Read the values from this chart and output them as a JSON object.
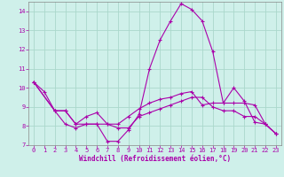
{
  "xlabel": "Windchill (Refroidissement éolien,°C)",
  "ylabel": "",
  "background_color": "#cff0ea",
  "grid_color": "#aad8cc",
  "line_color": "#aa00aa",
  "spine_color": "#888888",
  "xlim": [
    -0.5,
    23.5
  ],
  "ylim": [
    7,
    14.5
  ],
  "xticks": [
    0,
    1,
    2,
    3,
    4,
    5,
    6,
    7,
    8,
    9,
    10,
    11,
    12,
    13,
    14,
    15,
    16,
    17,
    18,
    19,
    20,
    21,
    22,
    23
  ],
  "yticks": [
    7,
    8,
    9,
    10,
    11,
    12,
    13,
    14
  ],
  "series1_x": [
    0,
    1,
    2,
    3,
    4,
    5,
    6,
    7,
    8,
    9,
    10,
    11,
    12,
    13,
    14,
    15,
    16,
    17,
    18,
    19,
    20,
    21,
    22,
    23
  ],
  "series1_y": [
    10.3,
    9.8,
    8.8,
    8.1,
    7.9,
    8.1,
    8.1,
    7.2,
    7.2,
    7.8,
    8.6,
    11.0,
    12.5,
    13.5,
    14.4,
    14.1,
    13.5,
    11.9,
    9.2,
    10.0,
    9.3,
    8.2,
    8.1,
    7.6
  ],
  "series2_x": [
    0,
    2,
    3,
    4,
    5,
    6,
    7,
    8,
    9,
    10,
    11,
    12,
    13,
    14,
    15,
    16,
    17,
    18,
    19,
    20,
    21,
    22,
    23
  ],
  "series2_y": [
    10.3,
    8.8,
    8.8,
    8.1,
    8.5,
    8.7,
    8.1,
    8.1,
    8.5,
    8.9,
    9.2,
    9.4,
    9.5,
    9.7,
    9.8,
    9.1,
    9.2,
    9.2,
    9.2,
    9.2,
    9.1,
    8.1,
    7.6
  ],
  "series3_x": [
    0,
    2,
    3,
    4,
    5,
    6,
    7,
    8,
    9,
    10,
    11,
    12,
    13,
    14,
    15,
    16,
    17,
    18,
    19,
    20,
    21,
    22,
    23
  ],
  "series3_y": [
    10.3,
    8.8,
    8.8,
    8.1,
    8.1,
    8.1,
    8.1,
    7.9,
    7.9,
    8.5,
    8.7,
    8.9,
    9.1,
    9.3,
    9.5,
    9.5,
    9.0,
    8.8,
    8.8,
    8.5,
    8.5,
    8.1,
    7.6
  ],
  "font_family": "monospace",
  "tick_fontsize": 5.0,
  "xlabel_fontsize": 5.5
}
